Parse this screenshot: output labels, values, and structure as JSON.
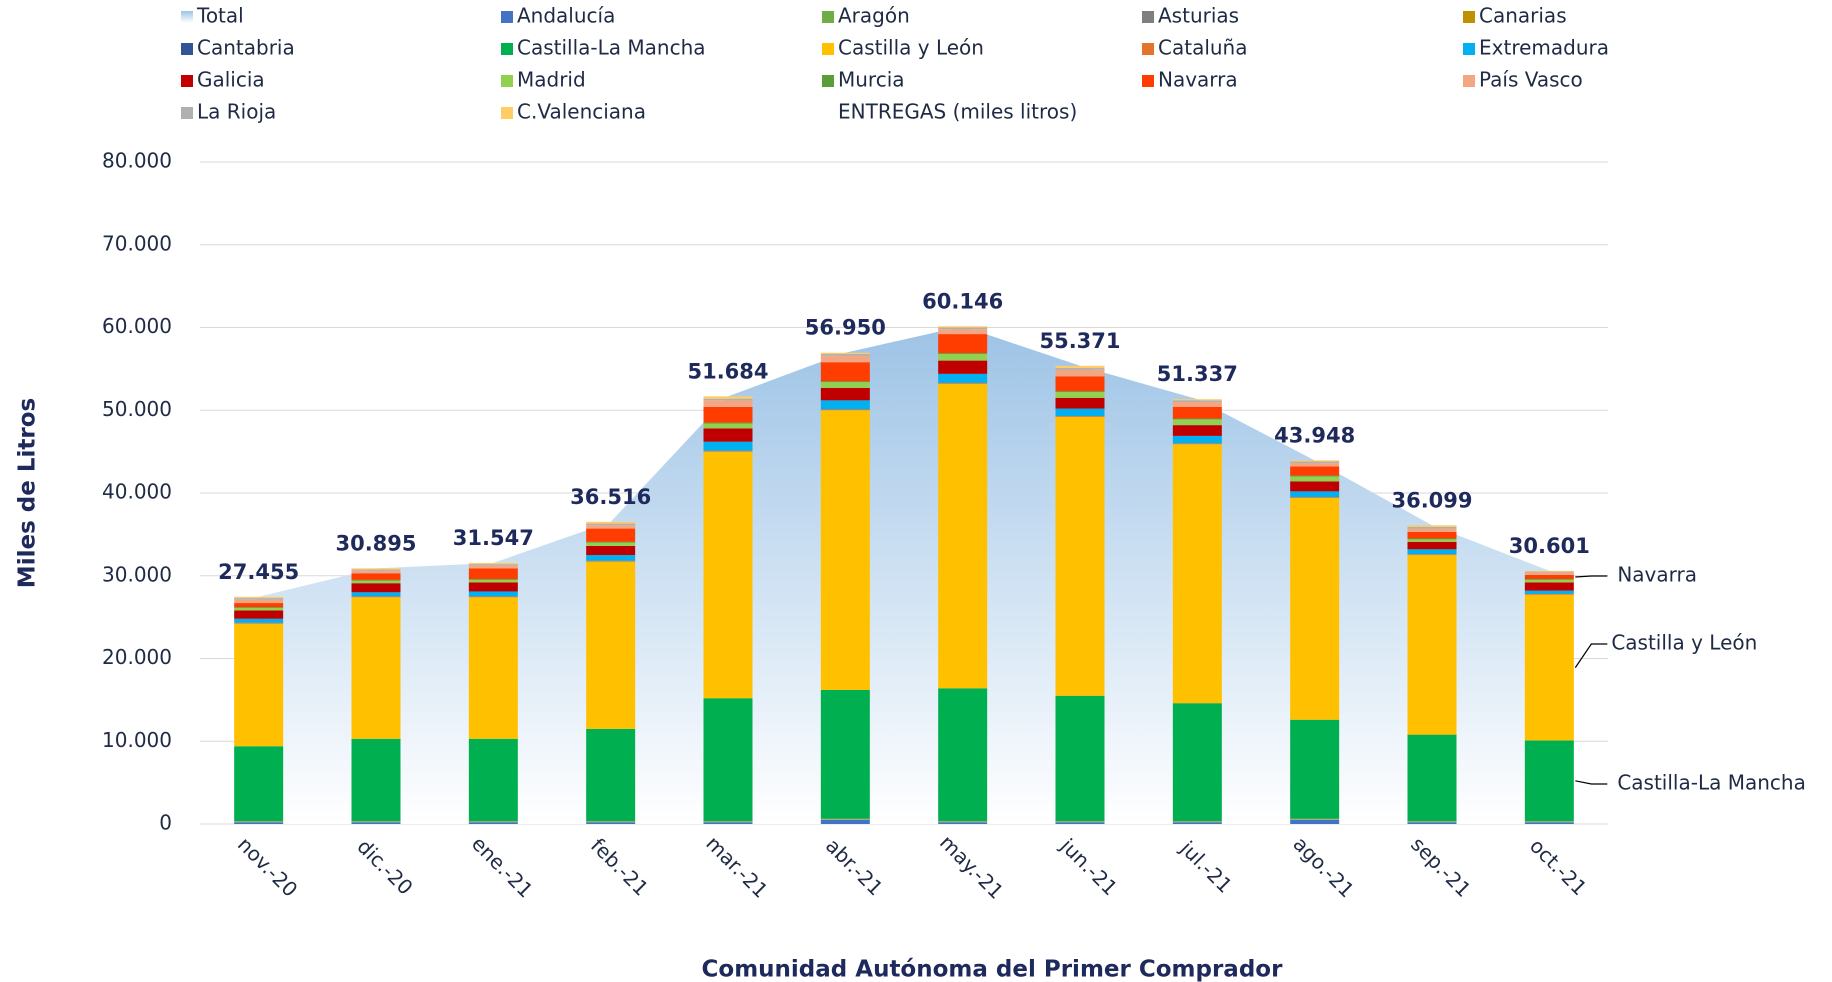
{
  "chart_data": {
    "type": "stacked-bar-area",
    "x_label": "Comunidad Autónoma del Primer Comprador",
    "y_label": "Miles de Litros",
    "legend_note": "ENTREGAS (miles litros)",
    "categories": [
      "nov.-20",
      "dic.-20",
      "ene.-21",
      "feb.-21",
      "mar.-21",
      "abr.-21",
      "may.-21",
      "jun.-21",
      "jul.-21",
      "ago.-21",
      "sep.-21",
      "oct.-21"
    ],
    "ylim": [
      0,
      80000
    ],
    "yticks": [
      0,
      {
        "value": 10000,
        "label": "10.000"
      },
      {
        "value": 20000,
        "label": "20.000"
      },
      {
        "value": 30000,
        "label": "30.000"
      },
      {
        "value": 40000,
        "label": "40.000"
      },
      {
        "value": 50000,
        "label": "50.000"
      },
      {
        "value": 60000,
        "label": "60.000"
      },
      {
        "value": 70000,
        "label": "70.000"
      },
      {
        "value": 80000,
        "label": "80.000"
      }
    ],
    "grid": true,
    "total": {
      "name": "Total",
      "color": "#9dc3e6",
      "values": [
        27455,
        30895,
        31547,
        36516,
        51684,
        56950,
        60146,
        55371,
        51337,
        43948,
        36099,
        30601
      ],
      "value_labels": [
        "27.455",
        "30.895",
        "31.547",
        "36.516",
        "51.684",
        "56.950",
        "60.146",
        "55.371",
        "51.337",
        "43.948",
        "36.099",
        "30.601"
      ]
    },
    "series": [
      {
        "name": "Andalucía",
        "color": "#4472c4",
        "values": [
          200,
          200,
          200,
          200,
          200,
          500,
          200,
          200,
          200,
          500,
          200,
          200
        ]
      },
      {
        "name": "Aragón",
        "color": "#70ad47",
        "values": [
          50,
          50,
          50,
          50,
          50,
          50,
          50,
          50,
          50,
          50,
          50,
          50
        ]
      },
      {
        "name": "Asturias",
        "color": "#7f7f7f",
        "values": [
          20,
          20,
          20,
          20,
          20,
          20,
          20,
          20,
          20,
          20,
          20,
          20
        ]
      },
      {
        "name": "Canarias",
        "color": "#bf9000",
        "values": [
          50,
          50,
          50,
          50,
          50,
          50,
          50,
          50,
          50,
          50,
          50,
          50
        ]
      },
      {
        "name": "Cantabria",
        "color": "#2f5597",
        "values": [
          20,
          20,
          20,
          20,
          20,
          20,
          20,
          20,
          20,
          20,
          20,
          20
        ]
      },
      {
        "name": "Castilla-La Mancha",
        "color": "#00b050",
        "values": [
          9060,
          9960,
          9960,
          11160,
          14860,
          15560,
          16060,
          15160,
          14260,
          11960,
          10460,
          9760
        ]
      },
      {
        "name": "Castilla y León",
        "color": "#ffc000",
        "values": [
          14800,
          17100,
          17100,
          20200,
          29800,
          33800,
          36800,
          33700,
          31300,
          26800,
          21700,
          17600
        ]
      },
      {
        "name": "Cataluña",
        "color": "#e2742c",
        "values": [
          100,
          100,
          100,
          100,
          100,
          100,
          100,
          100,
          100,
          100,
          100,
          100
        ]
      },
      {
        "name": "Extremadura",
        "color": "#00b0f0",
        "values": [
          500,
          500,
          600,
          700,
          1100,
          1100,
          1100,
          900,
          900,
          700,
          600,
          400
        ]
      },
      {
        "name": "Galicia",
        "color": "#c00000",
        "values": [
          1000,
          1100,
          1100,
          1100,
          1600,
          1500,
          1600,
          1300,
          1300,
          1200,
          900,
          1000
        ]
      },
      {
        "name": "Madrid",
        "color": "#92d050",
        "values": [
          300,
          300,
          300,
          400,
          600,
          700,
          800,
          700,
          700,
          600,
          300,
          300
        ]
      },
      {
        "name": "Murcia",
        "color": "#5a9e3a",
        "values": [
          100,
          100,
          100,
          100,
          100,
          100,
          100,
          100,
          100,
          100,
          100,
          100
        ]
      },
      {
        "name": "Navarra",
        "color": "#ff3d00",
        "values": [
          500,
          800,
          1300,
          1600,
          1900,
          2300,
          2300,
          1800,
          1400,
          1100,
          800,
          500
        ]
      },
      {
        "name": "País Vasco",
        "color": "#f4a582",
        "values": [
          400,
          300,
          350,
          400,
          800,
          800,
          600,
          800,
          600,
          400,
          400,
          300
        ]
      },
      {
        "name": "La Rioja",
        "color": "#b0b0b0",
        "values": [
          200,
          150,
          150,
          200,
          200,
          200,
          200,
          200,
          200,
          200,
          200,
          100
        ]
      },
      {
        "name": "C.Valenciana",
        "color": "#ffcc66",
        "values": [
          155,
          145,
          147,
          216,
          284,
          150,
          146,
          271,
          137,
          148,
          199,
          101
        ]
      }
    ],
    "annotations": [
      "Navarra",
      "Castilla y León",
      "Castilla-La Mancha"
    ]
  }
}
